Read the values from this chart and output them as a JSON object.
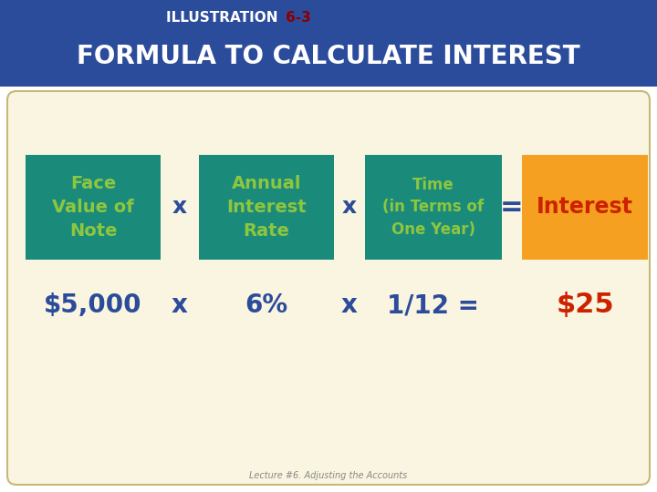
{
  "title_prefix": "ILLUSTRATION ",
  "title_number": "6-3",
  "title_main": "FORMULA TO CALCULATE INTEREST",
  "header_bg": "#2B4B9B",
  "body_bg": "#FAF5E0",
  "teal_color": "#1A8A7A",
  "orange_color": "#F5A020",
  "green_text": "#8DC63F",
  "blue_text": "#2B4B9B",
  "red_text": "#AA0000",
  "white_text": "#FFFFFF",
  "box1_label": "Face\nValue of\nNote",
  "box2_label": "Annual\nInterest\nRate",
  "box3_label": "Time\n(in Terms of\nOne Year)",
  "box4_label": "Interest",
  "row2_col1": "$5,000",
  "row2_x1": "x",
  "row2_col2": "6%",
  "row2_x2": "x",
  "row2_col3": "1/12 =",
  "row2_col4": "$25",
  "footer": "Lecture #6. Adjusting the Accounts"
}
